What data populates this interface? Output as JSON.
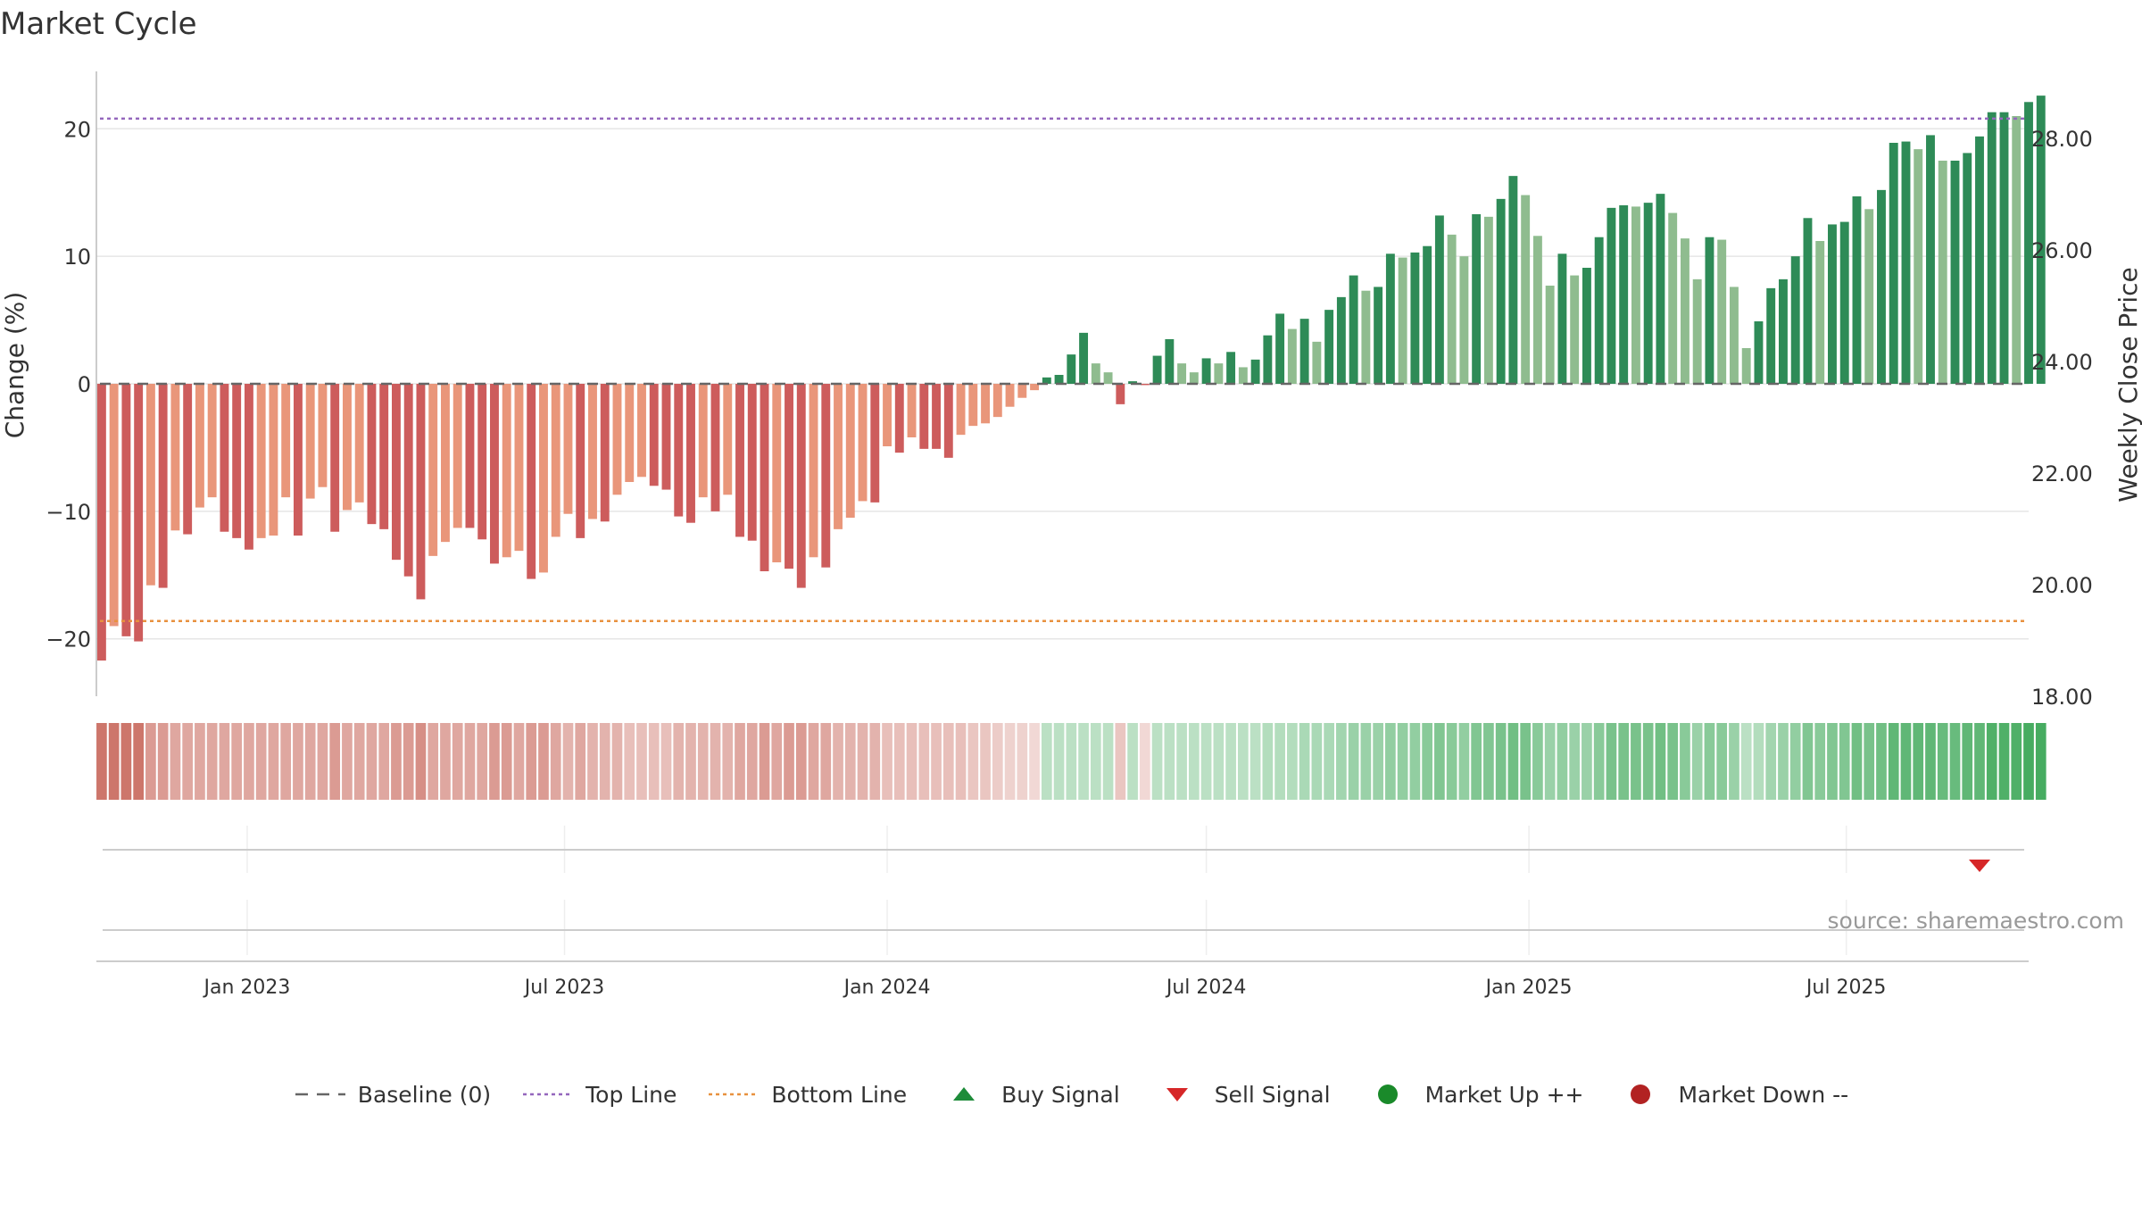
{
  "title": "Market Cycle",
  "source": "source: sharemaestro.com",
  "legend": [
    {
      "label": "Baseline (0)",
      "symbol": "dash-line",
      "color": "#666666"
    },
    {
      "label": "Top Line",
      "symbol": "dot-line",
      "color": "#9467bd"
    },
    {
      "label": "Bottom Line",
      "symbol": "dot-line",
      "color": "#e8913f"
    },
    {
      "label": "Buy Signal",
      "symbol": "triangle-up",
      "color": "#1e8c3a"
    },
    {
      "label": "Sell Signal",
      "symbol": "triangle-down",
      "color": "#d62728"
    },
    {
      "label": "Market Up ++",
      "symbol": "circle",
      "color": "#1a8a2a"
    },
    {
      "label": "Market Down --",
      "symbol": "circle",
      "color": "#b22222"
    }
  ],
  "colors": {
    "dark_red": "#cd5c5c",
    "light_red": "#e9967a",
    "dark_green": "#2e8b57",
    "light_green": "#8fbc8f",
    "grid": "#e6e6e6",
    "baseline": "#666666",
    "top_line": "#9467bd",
    "bottom_line": "#e8913f",
    "sell_signal": "#d62728"
  },
  "chart_data": {
    "type": "bar",
    "title": "Market Cycle",
    "ylabel": "Change (%)",
    "y2label": "Weekly Close Price",
    "ylim": [
      -24.5,
      24.5
    ],
    "y_ticks": [
      20,
      10,
      0,
      -10,
      -20
    ],
    "y_tick_labels": [
      "20",
      "10",
      "0",
      "−10",
      "−20"
    ],
    "y2lim": [
      18.0,
      29.2
    ],
    "y2_ticks": [
      28.0,
      26.0,
      24.0,
      22.0,
      20.0,
      18.0
    ],
    "y2_tick_labels": [
      "28.00",
      "26.00",
      "24.00",
      "22.00",
      "20.00",
      "18.00"
    ],
    "x_start": "2022-10-07",
    "x_end": "2025-10-13",
    "x_ticks": [
      "2023-01-01",
      "2023-07-01",
      "2024-01-01",
      "2024-07-01",
      "2025-01-01",
      "2025-07-01"
    ],
    "x_tick_labels": [
      "Jan 2023",
      "Jul 2023",
      "Jan 2024",
      "Jul 2024",
      "Jan 2025",
      "Jul 2025"
    ],
    "first_week": "2022-10-10",
    "reference_lines": {
      "baseline": 0,
      "top_line": 20.8,
      "bottom_line": -18.6
    },
    "sell_signals": [
      "2025-09-15"
    ],
    "buy_signals": [],
    "grid": true,
    "legend_position": "bottom",
    "change_pct": [
      -21.7,
      -19.0,
      -19.8,
      -20.2,
      -15.8,
      -16.0,
      -11.5,
      -11.8,
      -9.7,
      -8.9,
      -11.6,
      -12.1,
      -13.0,
      -12.1,
      -11.9,
      -8.9,
      -11.9,
      -9.0,
      -8.1,
      -11.6,
      -9.9,
      -9.3,
      -11.0,
      -11.4,
      -13.8,
      -15.1,
      -16.9,
      -13.5,
      -12.4,
      -11.3,
      -11.3,
      -12.2,
      -14.1,
      -13.6,
      -13.1,
      -15.3,
      -14.8,
      -12.0,
      -10.2,
      -12.1,
      -10.6,
      -10.8,
      -8.7,
      -7.7,
      -7.3,
      -8.0,
      -8.3,
      -10.4,
      -10.9,
      -8.9,
      -10.0,
      -8.7,
      -12.0,
      -12.3,
      -14.7,
      -14.0,
      -14.5,
      -16.0,
      -13.6,
      -14.4,
      -11.4,
      -10.5,
      -9.2,
      -9.3,
      -4.9,
      -5.4,
      -4.2,
      -5.1,
      -5.1,
      -5.8,
      -4.0,
      -3.3,
      -3.1,
      -2.6,
      -1.8,
      -1.1,
      -0.5,
      0.5,
      0.7,
      2.3,
      4.0,
      1.6,
      0.9,
      -1.6,
      0.2,
      -0.1,
      2.2,
      3.5,
      1.6,
      0.9,
      2.0,
      1.6,
      2.5,
      1.3,
      1.9,
      3.8,
      5.5,
      4.3,
      5.1,
      3.3,
      5.8,
      6.8,
      8.5,
      7.3,
      7.6,
      10.2,
      9.9,
      10.3,
      10.8,
      13.2,
      11.7,
      10.0,
      13.3,
      13.1,
      14.5,
      16.3,
      14.8,
      11.6,
      7.7,
      10.2,
      8.5,
      9.1,
      11.5,
      13.8,
      14.0,
      13.9,
      14.2,
      14.9,
      13.4,
      11.4,
      8.2,
      11.5,
      11.3,
      7.6,
      2.8,
      4.9,
      7.5,
      8.2,
      10.0,
      13.0,
      11.2,
      12.5,
      12.7,
      14.7,
      13.7,
      15.2,
      18.9,
      19.0,
      18.4,
      19.5,
      17.5,
      17.5,
      18.1,
      19.4,
      21.3,
      21.3,
      21.0,
      22.1,
      22.6
    ],
    "band_strength": [
      -0.9,
      -0.9,
      -0.9,
      -0.9,
      -0.6,
      -0.6,
      -0.5,
      -0.5,
      -0.5,
      -0.5,
      -0.5,
      -0.5,
      -0.5,
      -0.5,
      -0.5,
      -0.5,
      -0.5,
      -0.5,
      -0.5,
      -0.6,
      -0.5,
      -0.5,
      -0.5,
      -0.5,
      -0.6,
      -0.6,
      -0.7,
      -0.5,
      -0.5,
      -0.5,
      -0.5,
      -0.5,
      -0.6,
      -0.6,
      -0.5,
      -0.6,
      -0.6,
      -0.5,
      -0.4,
      -0.5,
      -0.4,
      -0.4,
      -0.4,
      -0.3,
      -0.3,
      -0.3,
      -0.3,
      -0.4,
      -0.4,
      -0.4,
      -0.4,
      -0.4,
      -0.5,
      -0.5,
      -0.6,
      -0.5,
      -0.6,
      -0.6,
      -0.5,
      -0.5,
      -0.4,
      -0.4,
      -0.4,
      -0.4,
      -0.3,
      -0.3,
      -0.3,
      -0.3,
      -0.3,
      -0.3,
      -0.3,
      -0.25,
      -0.25,
      -0.2,
      -0.15,
      -0.15,
      -0.1,
      0.25,
      0.25,
      0.25,
      0.25,
      0.25,
      0.25,
      -0.25,
      0.25,
      -0.1,
      0.25,
      0.25,
      0.25,
      0.25,
      0.25,
      0.25,
      0.25,
      0.25,
      0.25,
      0.3,
      0.3,
      0.3,
      0.35,
      0.35,
      0.35,
      0.4,
      0.45,
      0.45,
      0.45,
      0.5,
      0.5,
      0.5,
      0.55,
      0.6,
      0.55,
      0.5,
      0.6,
      0.6,
      0.65,
      0.7,
      0.65,
      0.55,
      0.45,
      0.5,
      0.45,
      0.45,
      0.55,
      0.65,
      0.65,
      0.65,
      0.65,
      0.7,
      0.65,
      0.55,
      0.45,
      0.55,
      0.55,
      0.45,
      0.25,
      0.3,
      0.4,
      0.45,
      0.5,
      0.6,
      0.55,
      0.6,
      0.6,
      0.7,
      0.65,
      0.7,
      0.8,
      0.8,
      0.8,
      0.8,
      0.75,
      0.75,
      0.8,
      0.8,
      0.9,
      0.9,
      0.9,
      0.95,
      0.95
    ]
  }
}
